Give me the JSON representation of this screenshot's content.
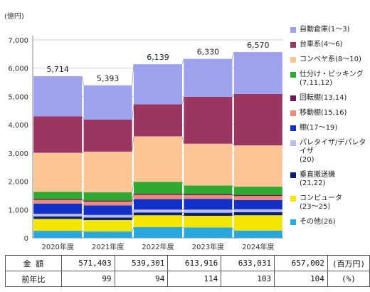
{
  "chart_data": {
    "type": "bar",
    "stacked": true,
    "ylabel": "(億円)",
    "ylim": [
      0,
      7000
    ],
    "yticks": [
      "0",
      "1,000",
      "2,000",
      "3,000",
      "4,000",
      "5,000",
      "6,000",
      "7,000"
    ],
    "ytick_values": [
      0,
      1000,
      2000,
      3000,
      4000,
      5000,
      6000,
      7000
    ],
    "grid": true,
    "legend_position": "right",
    "categories": [
      "2020年度",
      "2021年度",
      "2022年度",
      "2023年度",
      "2024年度"
    ],
    "totals": [
      5714,
      5393,
      6139,
      6330,
      6570
    ],
    "total_labels": [
      "5,714",
      "5,393",
      "6,139",
      "6,330",
      "6,570"
    ],
    "series": [
      {
        "name": "その他(26)",
        "color": "#29a8e0",
        "values": [
          250,
          230,
          380,
          370,
          260
        ]
      },
      {
        "name": "コンピュータ\n(23〜25)",
        "color": "#f5e600",
        "values": [
          420,
          400,
          420,
          410,
          540
        ]
      },
      {
        "name": "垂直搬送機\n(21,22)",
        "color": "#0a1f7a",
        "values": [
          90,
          90,
          100,
          110,
          110
        ]
      },
      {
        "name": "パレタイザ/デパレタイザ\n(20)",
        "color": "#b8bcf2",
        "values": [
          90,
          90,
          100,
          110,
          100
        ]
      },
      {
        "name": "棚(17〜19)",
        "color": "#1230c8",
        "values": [
          360,
          340,
          370,
          380,
          330
        ]
      },
      {
        "name": "移動棚(15,16)",
        "color": "#f08a78",
        "values": [
          130,
          130,
          150,
          130,
          140
        ]
      },
      {
        "name": "回転棚(13,14)",
        "color": "#6b1a58",
        "values": [
          40,
          40,
          40,
          40,
          40
        ]
      },
      {
        "name": "仕分け・ピッキング\n(7,11,12)",
        "color": "#2eaa2e",
        "values": [
          250,
          290,
          420,
          300,
          290
        ]
      },
      {
        "name": "コンベヤ系(8〜10)",
        "color": "#fbc595",
        "values": [
          1380,
          1440,
          1610,
          1480,
          1460
        ]
      },
      {
        "name": "台車系(4〜6)",
        "color": "#9b3562",
        "values": [
          1290,
          1130,
          1130,
          1660,
          1820
        ]
      },
      {
        "name": "自動倉庫(1〜3)",
        "color": "#9ea2ee",
        "values": [
          1414,
          1213,
          1419,
          1340,
          1480
        ]
      }
    ]
  },
  "legend_items": [
    {
      "label": "自動倉庫(1〜3)",
      "color": "#9ea2ee"
    },
    {
      "label": "台車系(4〜6)",
      "color": "#9b3562"
    },
    {
      "label": "コンベヤ系(8〜10)",
      "color": "#fbc595"
    },
    {
      "label": "仕分け・ピッキング\n(7,11,12)",
      "color": "#2eaa2e"
    },
    {
      "label": "回転棚(13,14)",
      "color": "#6b1a58"
    },
    {
      "label": "移動棚(15,16)",
      "color": "#f08a78"
    },
    {
      "label": "棚(17〜19)",
      "color": "#1230c8"
    },
    {
      "label": "パレタイザ/デパレタイザ\n(20)",
      "color": "#b8bcf2"
    },
    {
      "label": "垂直搬送機\n(21,22)",
      "color": "#0a1f7a"
    },
    {
      "label": "コンピュータ\n(23〜25)",
      "color": "#f5e600"
    },
    {
      "label": "その他(26)",
      "color": "#29a8e0"
    }
  ],
  "table": {
    "row1_label": "金 額",
    "row1_values": [
      "571,403",
      "539,301",
      "613,916",
      "633,031",
      "657,002"
    ],
    "row1_unit": "(百万円)",
    "row2_label": "前年比",
    "row2_values": [
      "99",
      "94",
      "114",
      "103",
      "104"
    ],
    "row2_unit": "(%)"
  }
}
